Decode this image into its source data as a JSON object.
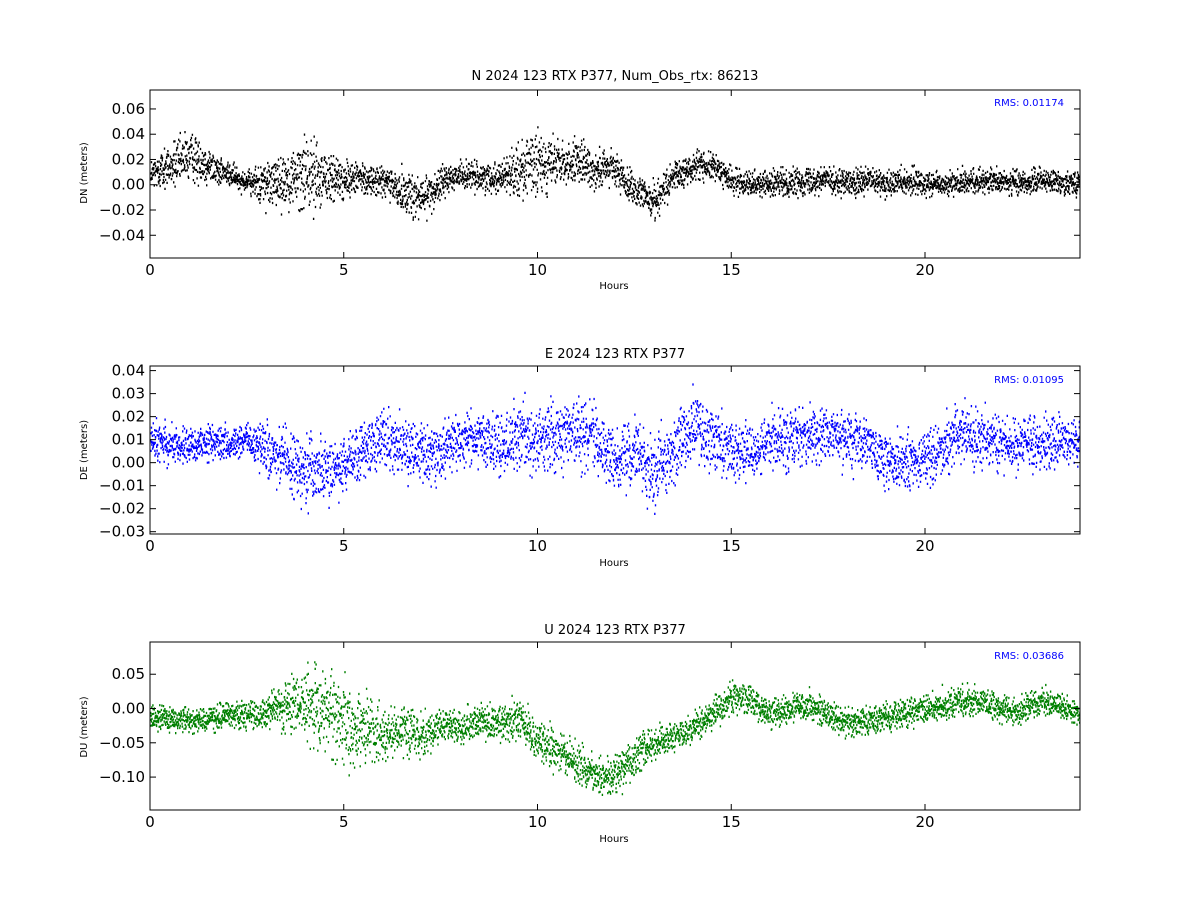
{
  "chart_data": [
    {
      "type": "scatter",
      "title": "N 2024 123 RTX  P377, Num_Obs_rtx: 86213",
      "xlabel": "Hours",
      "ylabel": "DN (meters)",
      "xlim": [
        0,
        24
      ],
      "ylim": [
        -0.058,
        0.075
      ],
      "xticks": [
        0,
        5,
        10,
        15,
        20
      ],
      "yticks": [
        -0.04,
        -0.02,
        0.0,
        0.02,
        0.04,
        0.06
      ],
      "ytick_labels": [
        "−0.04",
        "−0.02",
        "0.00",
        "0.02",
        "0.04",
        "0.06"
      ],
      "color": "#000000",
      "annotation": "RMS:  0.01174",
      "annotation_color": "#0000ff",
      "grid": false,
      "series": [
        {
          "x": [
            0,
            0.5,
            1,
            1.5,
            2,
            2.5,
            3,
            3.5,
            4,
            4.5,
            5,
            5.5,
            6,
            6.5,
            7,
            7.5,
            8,
            8.5,
            9,
            9.5,
            10,
            10.5,
            11,
            11.5,
            12,
            12.5,
            13,
            13.5,
            14,
            14.5,
            15,
            15.5,
            16,
            16.5,
            17,
            17.5,
            18,
            18.5,
            19,
            19.5,
            20,
            20.5,
            21,
            21.5,
            22,
            22.5,
            23,
            23.5,
            24
          ],
          "y": [
            0.008,
            0.015,
            0.022,
            0.015,
            0.008,
            0.002,
            0.0,
            0.003,
            0.01,
            0.006,
            0.003,
            0.005,
            0.002,
            -0.005,
            -0.012,
            0.002,
            0.008,
            0.005,
            0.006,
            0.012,
            0.015,
            0.016,
            0.018,
            0.012,
            0.012,
            -0.005,
            -0.012,
            0.005,
            0.015,
            0.015,
            0.003,
            0.002,
            0.0,
            0.002,
            0.003,
            0.005,
            0.0,
            0.003,
            0.0,
            0.003,
            0.002,
            0.0,
            0.003,
            0.003,
            0.002,
            0.002,
            0.003,
            0.002,
            0.002
          ],
          "spread": [
            0.01,
            0.014,
            0.016,
            0.012,
            0.008,
            0.007,
            0.016,
            0.018,
            0.025,
            0.02,
            0.012,
            0.01,
            0.01,
            0.015,
            0.015,
            0.01,
            0.009,
            0.009,
            0.01,
            0.018,
            0.02,
            0.015,
            0.014,
            0.014,
            0.012,
            0.01,
            0.012,
            0.01,
            0.01,
            0.009,
            0.008,
            0.008,
            0.009,
            0.009,
            0.009,
            0.009,
            0.009,
            0.009,
            0.009,
            0.009,
            0.009,
            0.008,
            0.008,
            0.008,
            0.008,
            0.008,
            0.008,
            0.008,
            0.008
          ]
        }
      ]
    },
    {
      "type": "scatter",
      "title": "E 2024 123 RTX  P377",
      "xlabel": "Hours",
      "ylabel": "DE (meters)",
      "xlim": [
        0,
        24
      ],
      "ylim": [
        -0.031,
        0.042
      ],
      "xticks": [
        0,
        5,
        10,
        15,
        20
      ],
      "yticks": [
        -0.03,
        -0.02,
        -0.01,
        0.0,
        0.01,
        0.02,
        0.03,
        0.04
      ],
      "ytick_labels": [
        "−0.03",
        "−0.02",
        "−0.01",
        "0.00",
        "0.01",
        "0.02",
        "0.03",
        "0.04"
      ],
      "color": "#0000ff",
      "annotation": "RMS:  0.01095",
      "annotation_color": "#0000ff",
      "grid": false,
      "series": [
        {
          "x": [
            0,
            0.5,
            1,
            1.5,
            2,
            2.5,
            3,
            3.5,
            4,
            4.5,
            5,
            5.5,
            6,
            6.5,
            7,
            7.5,
            8,
            8.5,
            9,
            9.5,
            10,
            10.5,
            11,
            11.5,
            12,
            12.5,
            13,
            13.5,
            14,
            14.5,
            15,
            15.5,
            16,
            16.5,
            17,
            17.5,
            18,
            18.5,
            19,
            19.5,
            20,
            20.5,
            21,
            21.5,
            22,
            22.5,
            23,
            23.5,
            24
          ],
          "y": [
            0.01,
            0.008,
            0.007,
            0.008,
            0.008,
            0.01,
            0.005,
            0.0,
            -0.003,
            -0.003,
            0.0,
            0.005,
            0.01,
            0.008,
            0.003,
            0.005,
            0.01,
            0.01,
            0.008,
            0.012,
            0.01,
            0.012,
            0.013,
            0.01,
            0.0,
            0.005,
            -0.005,
            0.005,
            0.015,
            0.01,
            0.005,
            0.005,
            0.01,
            0.01,
            0.012,
            0.012,
            0.01,
            0.008,
            0.0,
            0.0,
            0.002,
            0.008,
            0.012,
            0.01,
            0.008,
            0.008,
            0.008,
            0.01,
            0.01
          ],
          "spread": [
            0.007,
            0.007,
            0.006,
            0.006,
            0.006,
            0.006,
            0.01,
            0.012,
            0.013,
            0.012,
            0.01,
            0.011,
            0.012,
            0.011,
            0.011,
            0.01,
            0.01,
            0.01,
            0.011,
            0.012,
            0.012,
            0.012,
            0.013,
            0.013,
            0.012,
            0.012,
            0.013,
            0.012,
            0.012,
            0.012,
            0.011,
            0.01,
            0.01,
            0.01,
            0.01,
            0.01,
            0.01,
            0.01,
            0.01,
            0.01,
            0.01,
            0.01,
            0.011,
            0.01,
            0.01,
            0.009,
            0.009,
            0.009,
            0.008
          ]
        }
      ]
    },
    {
      "type": "scatter",
      "title": "U 2024 123 RTX  P377",
      "xlabel": "Hours",
      "ylabel": "DU (meters)",
      "xlim": [
        0,
        24
      ],
      "ylim": [
        -0.148,
        0.097
      ],
      "xticks": [
        0,
        5,
        10,
        15,
        20
      ],
      "yticks": [
        -0.1,
        -0.05,
        0.0,
        0.05
      ],
      "ytick_labels": [
        "−0.10",
        "−0.05",
        "0.00",
        "0.05"
      ],
      "color": "#008000",
      "annotation": "RMS:  0.03686",
      "annotation_color": "#0000ff",
      "grid": false,
      "series": [
        {
          "x": [
            0,
            0.5,
            1,
            1.5,
            2,
            2.5,
            3,
            3.5,
            4,
            4.5,
            5,
            5.5,
            6,
            6.5,
            7,
            7.5,
            8,
            8.5,
            9,
            9.5,
            10,
            10.5,
            11,
            11.5,
            12,
            12.5,
            13,
            13.5,
            14,
            14.5,
            15,
            15.5,
            16,
            16.5,
            17,
            17.5,
            18,
            18.5,
            19,
            19.5,
            20,
            20.5,
            21,
            21.5,
            22,
            22.5,
            23,
            23.5,
            24
          ],
          "y": [
            -0.01,
            -0.015,
            -0.02,
            -0.015,
            -0.01,
            -0.01,
            -0.005,
            0.005,
            0.005,
            -0.005,
            -0.02,
            -0.03,
            -0.04,
            -0.03,
            -0.04,
            -0.025,
            -0.03,
            -0.02,
            -0.02,
            -0.015,
            -0.05,
            -0.06,
            -0.08,
            -0.1,
            -0.1,
            -0.07,
            -0.05,
            -0.04,
            -0.03,
            -0.01,
            0.02,
            0.01,
            -0.01,
            0.0,
            0.005,
            -0.01,
            -0.02,
            -0.02,
            -0.01,
            -0.005,
            0.0,
            0.005,
            0.01,
            0.01,
            0.0,
            -0.005,
            0.01,
            0.0,
            -0.01
          ],
          "spread": [
            0.015,
            0.015,
            0.015,
            0.015,
            0.015,
            0.015,
            0.02,
            0.03,
            0.045,
            0.05,
            0.05,
            0.05,
            0.03,
            0.03,
            0.025,
            0.02,
            0.02,
            0.02,
            0.02,
            0.025,
            0.025,
            0.025,
            0.025,
            0.025,
            0.025,
            0.025,
            0.02,
            0.018,
            0.018,
            0.018,
            0.02,
            0.018,
            0.018,
            0.018,
            0.018,
            0.018,
            0.018,
            0.018,
            0.018,
            0.018,
            0.018,
            0.02,
            0.02,
            0.018,
            0.018,
            0.018,
            0.018,
            0.015,
            0.015
          ]
        }
      ]
    }
  ]
}
